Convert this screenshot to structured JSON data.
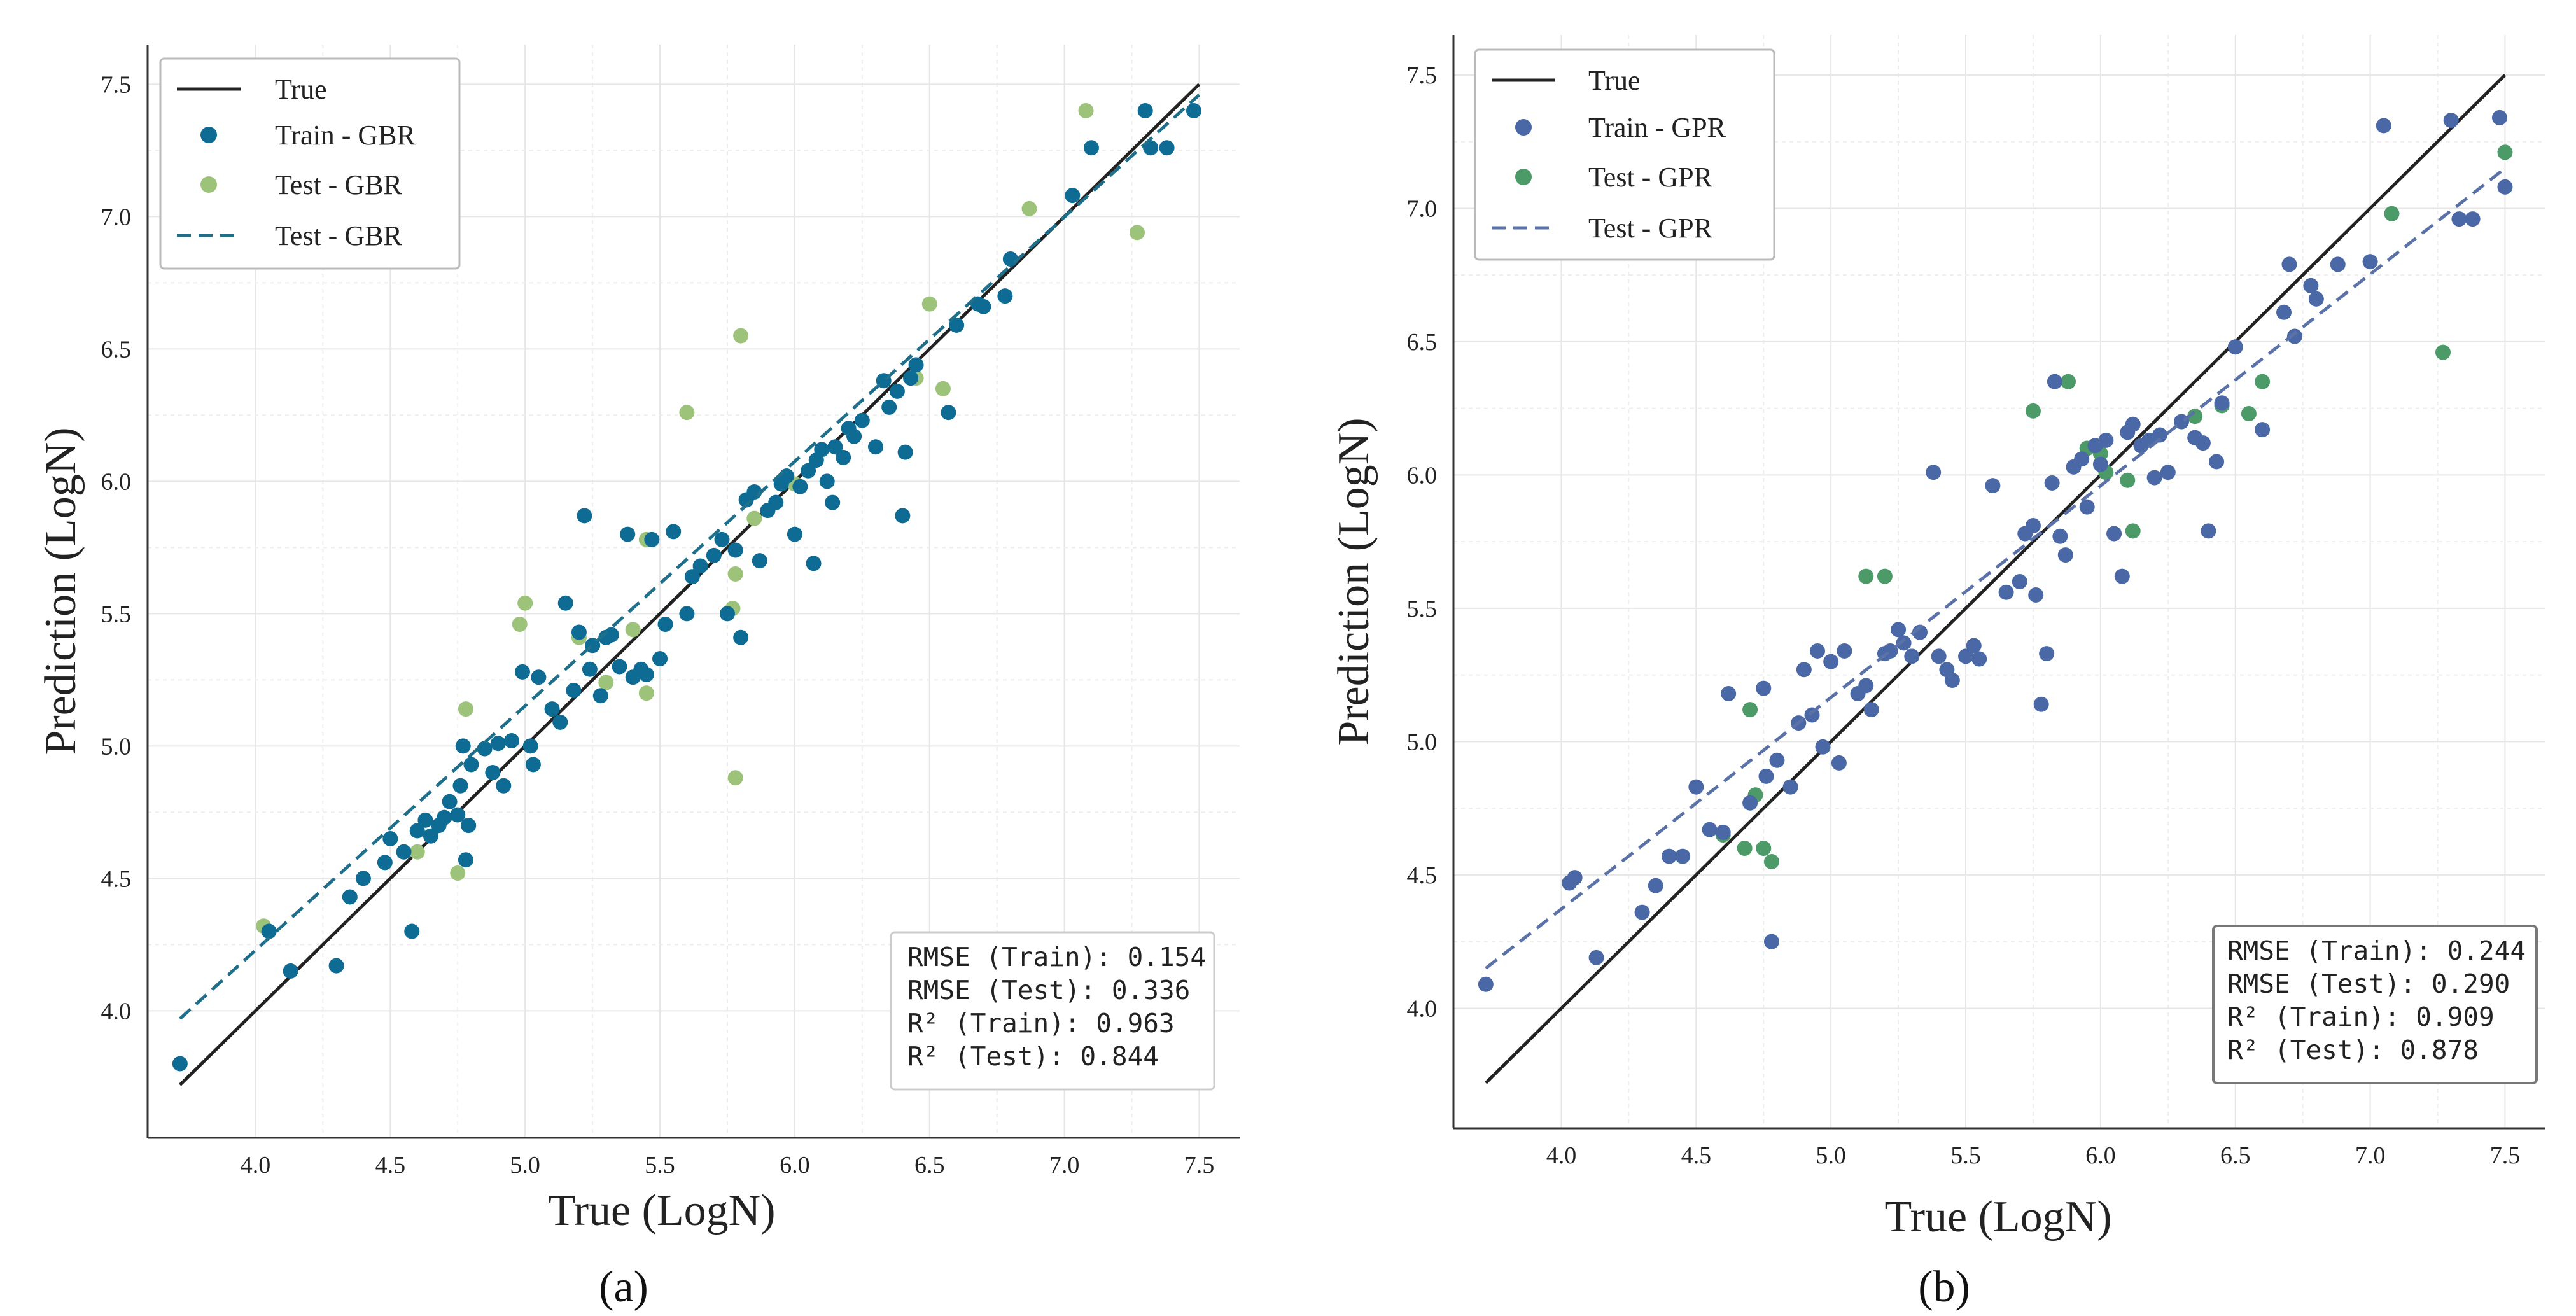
{
  "figure": {
    "panel_labels": [
      "(a)",
      "(b)"
    ]
  },
  "chart_data": [
    {
      "type": "scatter",
      "panel": "(a)",
      "title": "",
      "xlabel": "True (LogN)",
      "ylabel": "Prediction (LogN)",
      "xlim": [
        3.6,
        7.65
      ],
      "ylim": [
        3.52,
        7.65
      ],
      "xticks": [
        "4.0",
        "4.5",
        "5.0",
        "5.5",
        "6.0",
        "6.5",
        "7.0",
        "7.5"
      ],
      "yticks": [
        "4.0",
        "4.5",
        "5.0",
        "5.5",
        "6.0",
        "6.5",
        "7.0",
        "7.5"
      ],
      "grid": true,
      "legend_position": "top-left",
      "legend": [
        "True",
        "Train - GBR",
        "Test - GBR",
        "Test - GBR"
      ],
      "colors": {
        "true_line": "#222222",
        "train": "#0d6b94",
        "test": "#9dc37a",
        "fit": "#1f6f8b"
      },
      "true_line": {
        "x": [
          3.72,
          7.5
        ],
        "y": [
          3.72,
          7.5
        ]
      },
      "fit_line": {
        "x": [
          3.72,
          7.5
        ],
        "y": [
          3.97,
          7.46
        ]
      },
      "metrics": [
        "RMSE (Train): 0.154",
        "RMSE (Test): 0.336",
        "R² (Train): 0.963",
        "R² (Test): 0.844"
      ],
      "metrics_position": "bottom-right",
      "series": [
        {
          "name": "Train - GBR",
          "points": [
            [
              3.72,
              3.8
            ],
            [
              4.05,
              4.3
            ],
            [
              4.13,
              4.15
            ],
            [
              4.3,
              4.17
            ],
            [
              4.35,
              4.43
            ],
            [
              4.4,
              4.5
            ],
            [
              4.48,
              4.56
            ],
            [
              4.5,
              4.65
            ],
            [
              4.55,
              4.6
            ],
            [
              4.58,
              4.3
            ],
            [
              4.6,
              4.68
            ],
            [
              4.63,
              4.72
            ],
            [
              4.65,
              4.66
            ],
            [
              4.68,
              4.7
            ],
            [
              4.7,
              4.73
            ],
            [
              4.72,
              4.79
            ],
            [
              4.75,
              4.74
            ],
            [
              4.76,
              4.85
            ],
            [
              4.77,
              5.0
            ],
            [
              4.78,
              4.57
            ],
            [
              4.79,
              4.7
            ],
            [
              4.8,
              4.93
            ],
            [
              4.85,
              4.99
            ],
            [
              4.88,
              4.9
            ],
            [
              4.9,
              5.01
            ],
            [
              4.92,
              4.85
            ],
            [
              4.95,
              5.02
            ],
            [
              4.99,
              5.28
            ],
            [
              5.02,
              5.0
            ],
            [
              5.03,
              4.93
            ],
            [
              5.05,
              5.26
            ],
            [
              5.1,
              5.14
            ],
            [
              5.13,
              5.09
            ],
            [
              5.15,
              5.54
            ],
            [
              5.18,
              5.21
            ],
            [
              5.2,
              5.43
            ],
            [
              5.22,
              5.87
            ],
            [
              5.24,
              5.29
            ],
            [
              5.25,
              5.38
            ],
            [
              5.28,
              5.19
            ],
            [
              5.3,
              5.41
            ],
            [
              5.32,
              5.42
            ],
            [
              5.35,
              5.3
            ],
            [
              5.38,
              5.8
            ],
            [
              5.4,
              5.26
            ],
            [
              5.43,
              5.29
            ],
            [
              5.45,
              5.27
            ],
            [
              5.47,
              5.78
            ],
            [
              5.5,
              5.33
            ],
            [
              5.52,
              5.46
            ],
            [
              5.55,
              5.81
            ],
            [
              5.6,
              5.5
            ],
            [
              5.62,
              5.64
            ],
            [
              5.65,
              5.68
            ],
            [
              5.7,
              5.72
            ],
            [
              5.73,
              5.78
            ],
            [
              5.75,
              5.5
            ],
            [
              5.78,
              5.74
            ],
            [
              5.8,
              5.41
            ],
            [
              5.82,
              5.93
            ],
            [
              5.85,
              5.96
            ],
            [
              5.87,
              5.7
            ],
            [
              5.9,
              5.89
            ],
            [
              5.93,
              5.92
            ],
            [
              5.95,
              5.99
            ],
            [
              5.97,
              6.02
            ],
            [
              6.0,
              5.8
            ],
            [
              6.02,
              5.98
            ],
            [
              6.05,
              6.04
            ],
            [
              6.07,
              5.69
            ],
            [
              6.08,
              6.08
            ],
            [
              6.1,
              6.12
            ],
            [
              6.12,
              6.0
            ],
            [
              6.14,
              5.92
            ],
            [
              6.15,
              6.13
            ],
            [
              6.18,
              6.09
            ],
            [
              6.2,
              6.2
            ],
            [
              6.22,
              6.17
            ],
            [
              6.25,
              6.23
            ],
            [
              6.3,
              6.13
            ],
            [
              6.33,
              6.38
            ],
            [
              6.35,
              6.28
            ],
            [
              6.38,
              6.34
            ],
            [
              6.4,
              5.87
            ],
            [
              6.41,
              6.11
            ],
            [
              6.43,
              6.39
            ],
            [
              6.45,
              6.44
            ],
            [
              6.57,
              6.26
            ],
            [
              6.6,
              6.59
            ],
            [
              6.68,
              6.67
            ],
            [
              6.7,
              6.66
            ],
            [
              6.78,
              6.7
            ],
            [
              6.8,
              6.84
            ],
            [
              7.03,
              7.08
            ],
            [
              7.1,
              7.26
            ],
            [
              7.3,
              7.4
            ],
            [
              7.32,
              7.26
            ],
            [
              7.38,
              7.26
            ],
            [
              7.48,
              7.4
            ]
          ]
        },
        {
          "name": "Test - GBR",
          "points": [
            [
              4.03,
              4.32
            ],
            [
              4.6,
              4.6
            ],
            [
              4.75,
              4.52
            ],
            [
              4.78,
              5.14
            ],
            [
              4.98,
              5.46
            ],
            [
              5.0,
              5.54
            ],
            [
              5.2,
              5.41
            ],
            [
              5.3,
              5.24
            ],
            [
              5.4,
              5.44
            ],
            [
              5.45,
              5.78
            ],
            [
              5.45,
              5.2
            ],
            [
              5.6,
              6.26
            ],
            [
              5.77,
              5.52
            ],
            [
              5.78,
              4.88
            ],
            [
              5.78,
              5.65
            ],
            [
              5.8,
              6.55
            ],
            [
              5.85,
              5.86
            ],
            [
              6.0,
              5.99
            ],
            [
              6.45,
              6.39
            ],
            [
              6.5,
              6.67
            ],
            [
              6.55,
              6.35
            ],
            [
              6.87,
              7.03
            ],
            [
              7.08,
              7.4
            ],
            [
              7.27,
              6.94
            ]
          ]
        }
      ]
    },
    {
      "type": "scatter",
      "panel": "(b)",
      "title": "",
      "xlabel": "True (LogN)",
      "ylabel": "Prediction (LogN)",
      "xlim": [
        3.6,
        7.65
      ],
      "ylim": [
        3.55,
        7.65
      ],
      "xticks": [
        "4.0",
        "4.5",
        "5.0",
        "5.5",
        "6.0",
        "6.5",
        "7.0",
        "7.5"
      ],
      "yticks": [
        "4.0",
        "4.5",
        "5.0",
        "5.5",
        "6.0",
        "6.5",
        "7.0",
        "7.5"
      ],
      "grid": true,
      "legend_position": "top-left",
      "legend": [
        "True",
        "Train - GPR",
        "Test - GPR",
        "Test - GPR"
      ],
      "colors": {
        "true_line": "#222222",
        "train": "#4a68a6",
        "test": "#4c9a68",
        "fit": "#5a72a8"
      },
      "true_line": {
        "x": [
          3.72,
          7.5
        ],
        "y": [
          3.72,
          7.5
        ]
      },
      "fit_line": {
        "x": [
          3.72,
          7.5
        ],
        "y": [
          4.15,
          7.15
        ]
      },
      "metrics": [
        "RMSE (Train): 0.244",
        "RMSE (Test): 0.290",
        "R² (Train): 0.909",
        "R² (Test): 0.878"
      ],
      "metrics_position": "bottom-right",
      "series": [
        {
          "name": "Train - GPR",
          "points": [
            [
              3.72,
              4.09
            ],
            [
              4.03,
              4.47
            ],
            [
              4.05,
              4.49
            ],
            [
              4.13,
              4.19
            ],
            [
              4.3,
              4.36
            ],
            [
              4.35,
              4.46
            ],
            [
              4.4,
              4.57
            ],
            [
              4.45,
              4.57
            ],
            [
              4.5,
              4.83
            ],
            [
              4.55,
              4.67
            ],
            [
              4.6,
              4.66
            ],
            [
              4.62,
              5.18
            ],
            [
              4.7,
              4.77
            ],
            [
              4.75,
              5.2
            ],
            [
              4.76,
              4.87
            ],
            [
              4.78,
              4.25
            ],
            [
              4.8,
              4.93
            ],
            [
              4.85,
              4.83
            ],
            [
              4.88,
              5.07
            ],
            [
              4.9,
              5.27
            ],
            [
              4.93,
              5.1
            ],
            [
              4.95,
              5.34
            ],
            [
              4.97,
              4.98
            ],
            [
              5.0,
              5.3
            ],
            [
              5.03,
              4.92
            ],
            [
              5.05,
              5.34
            ],
            [
              5.1,
              5.18
            ],
            [
              5.13,
              5.21
            ],
            [
              5.15,
              5.12
            ],
            [
              5.2,
              5.33
            ],
            [
              5.22,
              5.34
            ],
            [
              5.25,
              5.42
            ],
            [
              5.27,
              5.37
            ],
            [
              5.3,
              5.32
            ],
            [
              5.33,
              5.41
            ],
            [
              5.38,
              6.01
            ],
            [
              5.4,
              5.32
            ],
            [
              5.43,
              5.27
            ],
            [
              5.45,
              5.23
            ],
            [
              5.5,
              5.32
            ],
            [
              5.53,
              5.36
            ],
            [
              5.55,
              5.31
            ],
            [
              5.6,
              5.96
            ],
            [
              5.65,
              5.56
            ],
            [
              5.7,
              5.6
            ],
            [
              5.72,
              5.78
            ],
            [
              5.75,
              5.81
            ],
            [
              5.76,
              5.55
            ],
            [
              5.78,
              5.14
            ],
            [
              5.8,
              5.33
            ],
            [
              5.82,
              5.97
            ],
            [
              5.83,
              6.35
            ],
            [
              5.85,
              5.77
            ],
            [
              5.87,
              5.7
            ],
            [
              5.9,
              6.03
            ],
            [
              5.93,
              6.06
            ],
            [
              5.95,
              5.88
            ],
            [
              5.98,
              6.11
            ],
            [
              6.0,
              6.04
            ],
            [
              6.02,
              6.13
            ],
            [
              6.05,
              5.78
            ],
            [
              6.08,
              5.62
            ],
            [
              6.1,
              6.16
            ],
            [
              6.12,
              6.19
            ],
            [
              6.15,
              6.11
            ],
            [
              6.18,
              6.13
            ],
            [
              6.2,
              5.99
            ],
            [
              6.22,
              6.15
            ],
            [
              6.25,
              6.01
            ],
            [
              6.3,
              6.2
            ],
            [
              6.35,
              6.14
            ],
            [
              6.38,
              6.12
            ],
            [
              6.4,
              5.79
            ],
            [
              6.43,
              6.05
            ],
            [
              6.45,
              6.27
            ],
            [
              6.5,
              6.48
            ],
            [
              6.6,
              6.17
            ],
            [
              6.68,
              6.61
            ],
            [
              6.7,
              6.79
            ],
            [
              6.72,
              6.52
            ],
            [
              6.78,
              6.71
            ],
            [
              6.8,
              6.66
            ],
            [
              6.88,
              6.79
            ],
            [
              7.0,
              6.8
            ],
            [
              7.05,
              7.31
            ],
            [
              7.3,
              7.33
            ],
            [
              7.33,
              6.96
            ],
            [
              7.38,
              6.96
            ],
            [
              7.48,
              7.34
            ],
            [
              7.5,
              7.08
            ]
          ]
        },
        {
          "name": "Test - GPR",
          "points": [
            [
              4.6,
              4.65
            ],
            [
              4.68,
              4.6
            ],
            [
              4.7,
              5.12
            ],
            [
              4.72,
              4.8
            ],
            [
              4.75,
              4.6
            ],
            [
              4.78,
              4.55
            ],
            [
              5.13,
              5.62
            ],
            [
              5.2,
              5.62
            ],
            [
              5.75,
              6.24
            ],
            [
              5.88,
              6.35
            ],
            [
              5.95,
              6.1
            ],
            [
              6.0,
              6.08
            ],
            [
              6.02,
              6.01
            ],
            [
              6.1,
              5.98
            ],
            [
              6.12,
              5.79
            ],
            [
              6.35,
              6.22
            ],
            [
              6.45,
              6.26
            ],
            [
              6.55,
              6.23
            ],
            [
              6.6,
              6.35
            ],
            [
              7.08,
              6.98
            ],
            [
              7.27,
              6.46
            ],
            [
              7.5,
              7.21
            ]
          ]
        }
      ]
    }
  ]
}
